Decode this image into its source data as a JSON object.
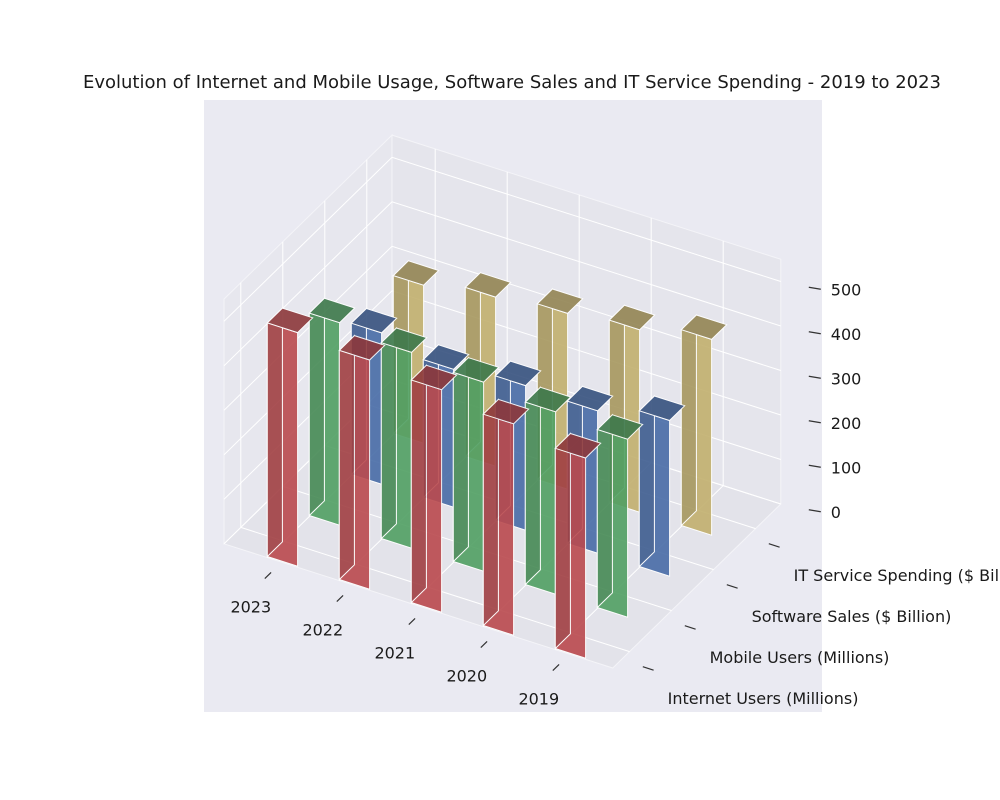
{
  "chart_data": {
    "type": "bar3d",
    "title": "Evolution of Internet and Mobile Usage, Software Sales and IT Service Spending - 2019 to 2023",
    "categories": [
      "2019",
      "2020",
      "2021",
      "2022",
      "2023"
    ],
    "series": [
      {
        "name": "Internet Users (Millions)",
        "values": [
          450,
          475,
          500,
          515,
          525
        ],
        "color": "#c44e52"
      },
      {
        "name": "Mobile Users (Millions)",
        "values": [
          400,
          410,
          425,
          440,
          455
        ],
        "color": "#55a868"
      },
      {
        "name": "Software Sales ($ Billion)",
        "values": [
          350,
          320,
          325,
          310,
          340
        ],
        "color": "#4c72b0"
      },
      {
        "name": "IT Service Spending ($ Billion)",
        "values": [
          440,
          410,
          395,
          380,
          355
        ],
        "color": "#ccb974"
      }
    ],
    "zlim": [
      0,
      550
    ],
    "zticks": [
      0,
      100,
      200,
      300,
      400,
      500
    ],
    "grid": true,
    "pane_color": "#eaeaf2",
    "background_color": "#eaeaf2"
  }
}
